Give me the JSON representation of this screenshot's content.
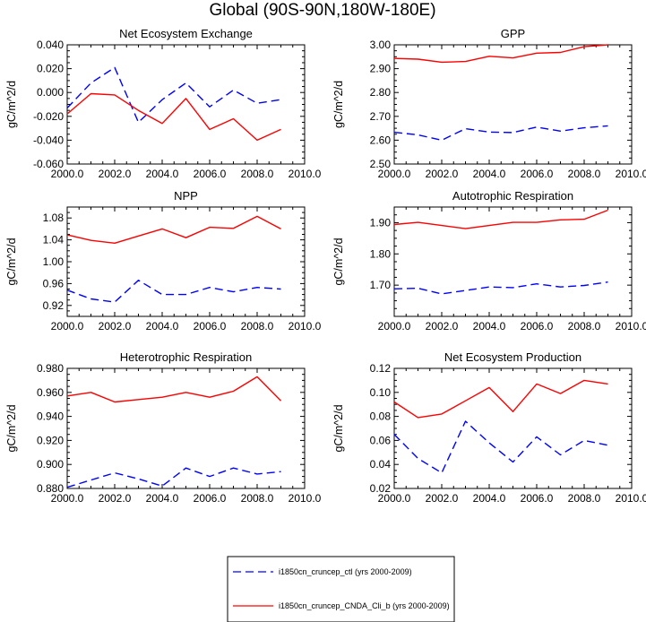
{
  "figure": {
    "title": "Global (90S-90N,180W-180E)"
  },
  "legend": {
    "entries": [
      {
        "label": "i1850cn_cruncep_ctl (yrs 2000-2009)",
        "color": "#0000ff",
        "dash": "dashed"
      },
      {
        "label": "i1850cn_cruncep_CNDA_Cli_b (yrs 2000-2009)",
        "color": "#ff0000",
        "dash": "solid"
      }
    ]
  },
  "chart_data": [
    {
      "type": "line",
      "title": "Net Ecosystem Exchange",
      "ylabel": "gC/m^2/d",
      "xlim": [
        2000,
        2010
      ],
      "ylim": [
        -0.06,
        0.04
      ],
      "xticks": [
        "2000.0",
        "2002.0",
        "2004.0",
        "2006.0",
        "2008.0",
        "2010.0"
      ],
      "yticks": [
        "-0.060",
        "-0.040",
        "-0.020",
        "0.000",
        "0.020",
        "0.040"
      ],
      "x": [
        2000,
        2001,
        2002,
        2003,
        2004,
        2005,
        2006,
        2007,
        2008,
        2009
      ],
      "series": [
        {
          "values": [
            -0.013,
            0.008,
            0.021,
            -0.025,
            -0.006,
            0.008,
            -0.012,
            0.002,
            -0.009,
            -0.006
          ],
          "color": "#0000ff",
          "dash": "dashed"
        },
        {
          "values": [
            -0.018,
            -0.001,
            -0.002,
            -0.015,
            -0.026,
            -0.005,
            -0.031,
            -0.022,
            -0.04,
            -0.031
          ],
          "color": "#ff0000",
          "dash": "solid"
        }
      ]
    },
    {
      "type": "line",
      "title": "GPP",
      "ylabel": "gC/m^2/d",
      "xlim": [
        2000,
        2010
      ],
      "ylim": [
        2.5,
        3.0
      ],
      "xticks": [
        "2000.0",
        "2002.0",
        "2004.0",
        "2006.0",
        "2008.0",
        "2010.0"
      ],
      "yticks": [
        "2.50",
        "2.60",
        "2.70",
        "2.80",
        "2.90",
        "3.00"
      ],
      "x": [
        2000,
        2001,
        2002,
        2003,
        2004,
        2005,
        2006,
        2007,
        2008,
        2009
      ],
      "series": [
        {
          "values": [
            2.633,
            2.622,
            2.6,
            2.648,
            2.634,
            2.632,
            2.655,
            2.638,
            2.652,
            2.66
          ],
          "color": "#0000ff",
          "dash": "dashed"
        },
        {
          "values": [
            2.943,
            2.94,
            2.927,
            2.93,
            2.952,
            2.945,
            2.965,
            2.968,
            2.992,
            3.0
          ],
          "color": "#ff0000",
          "dash": "solid"
        }
      ]
    },
    {
      "type": "line",
      "title": "NPP",
      "ylabel": "gC/m^2/d",
      "xlim": [
        2000,
        2010
      ],
      "ylim": [
        0.9,
        1.1
      ],
      "xticks": [
        "2000.0",
        "2002.0",
        "2004.0",
        "2006.0",
        "2008.0",
        "2010.0"
      ],
      "yticks": [
        "0.92",
        "0.96",
        "1.00",
        "1.04",
        "1.08"
      ],
      "x": [
        2000,
        2001,
        2002,
        2003,
        2004,
        2005,
        2006,
        2007,
        2008,
        2009
      ],
      "series": [
        {
          "values": [
            0.948,
            0.932,
            0.926,
            0.966,
            0.94,
            0.94,
            0.953,
            0.945,
            0.953,
            0.95
          ],
          "color": "#0000ff",
          "dash": "dashed"
        },
        {
          "values": [
            1.049,
            1.039,
            1.034,
            1.047,
            1.06,
            1.044,
            1.063,
            1.061,
            1.083,
            1.06
          ],
          "color": "#ff0000",
          "dash": "solid"
        }
      ]
    },
    {
      "type": "line",
      "title": "Autotrophic Respiration",
      "ylabel": "gC/m^2/d",
      "xlim": [
        2000,
        2010
      ],
      "ylim": [
        1.6,
        1.95
      ],
      "xticks": [
        "2000.0",
        "2002.0",
        "2004.0",
        "2006.0",
        "2008.0",
        "2010.0"
      ],
      "yticks": [
        "1.70",
        "1.80",
        "1.90"
      ],
      "x": [
        2000,
        2001,
        2002,
        2003,
        2004,
        2005,
        2006,
        2007,
        2008,
        2009
      ],
      "series": [
        {
          "values": [
            1.688,
            1.69,
            1.672,
            1.683,
            1.694,
            1.692,
            1.704,
            1.694,
            1.699,
            1.71
          ],
          "color": "#0000ff",
          "dash": "dashed"
        },
        {
          "values": [
            1.894,
            1.901,
            1.891,
            1.881,
            1.891,
            1.901,
            1.901,
            1.909,
            1.911,
            1.94
          ],
          "color": "#ff0000",
          "dash": "solid"
        }
      ]
    },
    {
      "type": "line",
      "title": "Heterotrophic Respiration",
      "ylabel": "gC/m^2/d",
      "xlim": [
        2000,
        2010
      ],
      "ylim": [
        0.88,
        0.98
      ],
      "xticks": [
        "2000.0",
        "2002.0",
        "2004.0",
        "2006.0",
        "2008.0",
        "2010.0"
      ],
      "yticks": [
        "0.880",
        "0.900",
        "0.920",
        "0.940",
        "0.960",
        "0.980"
      ],
      "x": [
        2000,
        2001,
        2002,
        2003,
        2004,
        2005,
        2006,
        2007,
        2008,
        2009
      ],
      "series": [
        {
          "values": [
            0.881,
            0.887,
            0.893,
            0.888,
            0.882,
            0.897,
            0.89,
            0.897,
            0.892,
            0.894
          ],
          "color": "#0000ff",
          "dash": "dashed"
        },
        {
          "values": [
            0.957,
            0.96,
            0.952,
            0.954,
            0.956,
            0.96,
            0.956,
            0.961,
            0.973,
            0.953
          ],
          "color": "#ff0000",
          "dash": "solid"
        }
      ]
    },
    {
      "type": "line",
      "title": "Net Ecosystem Production",
      "ylabel": "gC/m^2/d",
      "xlim": [
        2000,
        2010
      ],
      "ylim": [
        0.02,
        0.12
      ],
      "xticks": [
        "2000.0",
        "2002.0",
        "2004.0",
        "2006.0",
        "2008.0",
        "2010.0"
      ],
      "yticks": [
        "0.02",
        "0.04",
        "0.06",
        "0.08",
        "0.10",
        "0.12"
      ],
      "x": [
        2000,
        2001,
        2002,
        2003,
        2004,
        2005,
        2006,
        2007,
        2008,
        2009
      ],
      "series": [
        {
          "values": [
            0.065,
            0.045,
            0.033,
            0.076,
            0.058,
            0.042,
            0.063,
            0.048,
            0.06,
            0.056
          ],
          "color": "#0000ff",
          "dash": "dashed"
        },
        {
          "values": [
            0.092,
            0.079,
            0.082,
            0.093,
            0.104,
            0.084,
            0.107,
            0.099,
            0.11,
            0.107
          ],
          "color": "#ff0000",
          "dash": "solid"
        }
      ]
    }
  ]
}
